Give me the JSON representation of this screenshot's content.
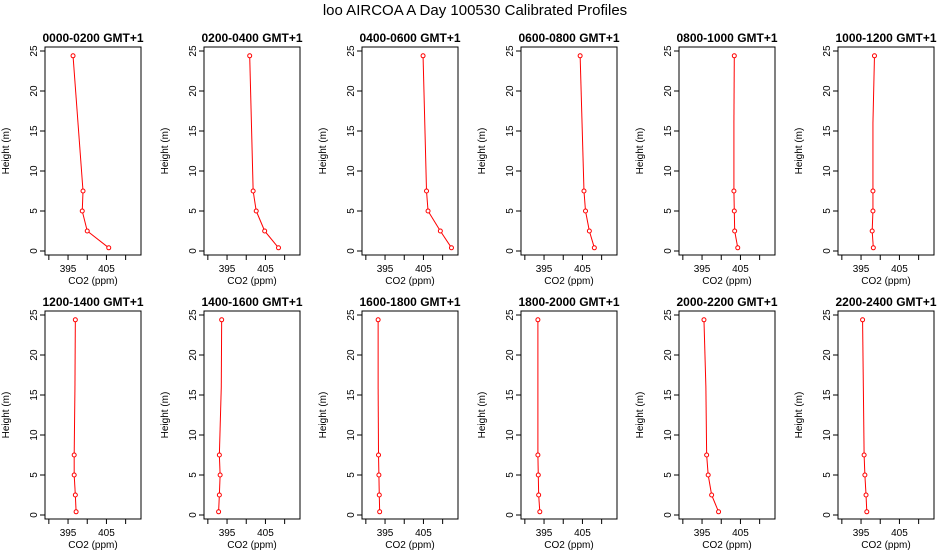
{
  "title": "loo AIRCOA A  Day 100530  Calibrated Profiles",
  "chart_data": {
    "type": "line",
    "xlabel": "CO2 (ppm)",
    "ylabel": "Height (m)",
    "xlim": [
      389,
      414
    ],
    "ylim": [
      -0.5,
      25.5
    ],
    "xticks": [
      395,
      405
    ],
    "yticks": [
      0,
      5,
      10,
      15,
      20,
      25
    ],
    "line_color": "#ff0000",
    "marker_style": "open-circle",
    "panels": [
      {
        "title": "0000-0200 GMT+1",
        "x": [
          396.3,
          398.9,
          398.7,
          400.0,
          405.6
        ],
        "y": [
          24.4,
          7.5,
          5.0,
          2.5,
          0.4
        ],
        "markers": [
          true,
          true,
          true,
          true,
          true
        ]
      },
      {
        "title": "0200-0400 GMT+1",
        "x": [
          400.9,
          401.8,
          402.6,
          404.8,
          408.4
        ],
        "y": [
          24.4,
          7.5,
          5.0,
          2.5,
          0.4
        ],
        "markers": [
          true,
          true,
          true,
          true,
          true
        ]
      },
      {
        "title": "0400-0600 GMT+1",
        "x": [
          404.9,
          405.8,
          406.2,
          409.4,
          412.3
        ],
        "y": [
          24.4,
          7.5,
          5.0,
          2.5,
          0.4
        ],
        "markers": [
          true,
          true,
          true,
          true,
          true
        ]
      },
      {
        "title": "0600-0800 GMT+1",
        "x": [
          404.4,
          405.4,
          405.8,
          406.8,
          408.1
        ],
        "y": [
          24.4,
          7.5,
          5.0,
          2.5,
          0.4
        ],
        "markers": [
          true,
          true,
          true,
          true,
          true
        ]
      },
      {
        "title": "0800-1000 GMT+1",
        "x": [
          403.4,
          403.3,
          403.3,
          403.4,
          403.5,
          404.3
        ],
        "y": [
          24.4,
          16.0,
          7.5,
          5.0,
          2.5,
          0.4
        ],
        "markers": [
          true,
          false,
          true,
          true,
          true,
          true
        ]
      },
      {
        "title": "1000-1200 GMT+1",
        "x": [
          398.5,
          398.1,
          398.1,
          398.1,
          397.9,
          398.2
        ],
        "y": [
          24.4,
          16.0,
          7.5,
          5.0,
          2.5,
          0.4
        ],
        "markers": [
          true,
          false,
          true,
          true,
          true,
          true
        ]
      },
      {
        "title": "1200-1400 GMT+1",
        "x": [
          396.9,
          396.8,
          396.6,
          396.6,
          396.9,
          397.1
        ],
        "y": [
          24.4,
          16.0,
          7.5,
          5.0,
          2.5,
          0.4
        ],
        "markers": [
          true,
          false,
          true,
          true,
          true,
          true
        ]
      },
      {
        "title": "1400-1600 GMT+1",
        "x": [
          393.6,
          393.5,
          393.0,
          393.2,
          393.0,
          392.8
        ],
        "y": [
          24.4,
          16.0,
          7.5,
          5.0,
          2.5,
          0.4
        ],
        "markers": [
          true,
          false,
          true,
          true,
          true,
          true
        ]
      },
      {
        "title": "1600-1800 GMT+1",
        "x": [
          393.2,
          393.2,
          393.3,
          393.4,
          393.5,
          393.6
        ],
        "y": [
          24.4,
          16.0,
          7.5,
          5.0,
          2.5,
          0.4
        ],
        "markers": [
          true,
          false,
          true,
          true,
          true,
          true
        ]
      },
      {
        "title": "1800-2000 GMT+1",
        "x": [
          393.4,
          393.4,
          393.4,
          393.5,
          393.6,
          393.9
        ],
        "y": [
          24.4,
          16.0,
          7.5,
          5.0,
          2.5,
          0.4
        ],
        "markers": [
          true,
          false,
          true,
          true,
          true,
          true
        ]
      },
      {
        "title": "2000-2200 GMT+1",
        "x": [
          395.5,
          396.0,
          396.2,
          396.6,
          397.5,
          399.3
        ],
        "y": [
          24.4,
          16.0,
          7.5,
          5.0,
          2.5,
          0.4
        ],
        "markers": [
          true,
          false,
          true,
          true,
          true,
          true
        ]
      },
      {
        "title": "2200-2400 GMT+1",
        "x": [
          395.4,
          395.6,
          395.8,
          396.0,
          396.3,
          396.5
        ],
        "y": [
          24.4,
          16.0,
          7.5,
          5.0,
          2.5,
          0.4
        ],
        "markers": [
          true,
          false,
          true,
          true,
          true,
          true
        ]
      }
    ]
  }
}
